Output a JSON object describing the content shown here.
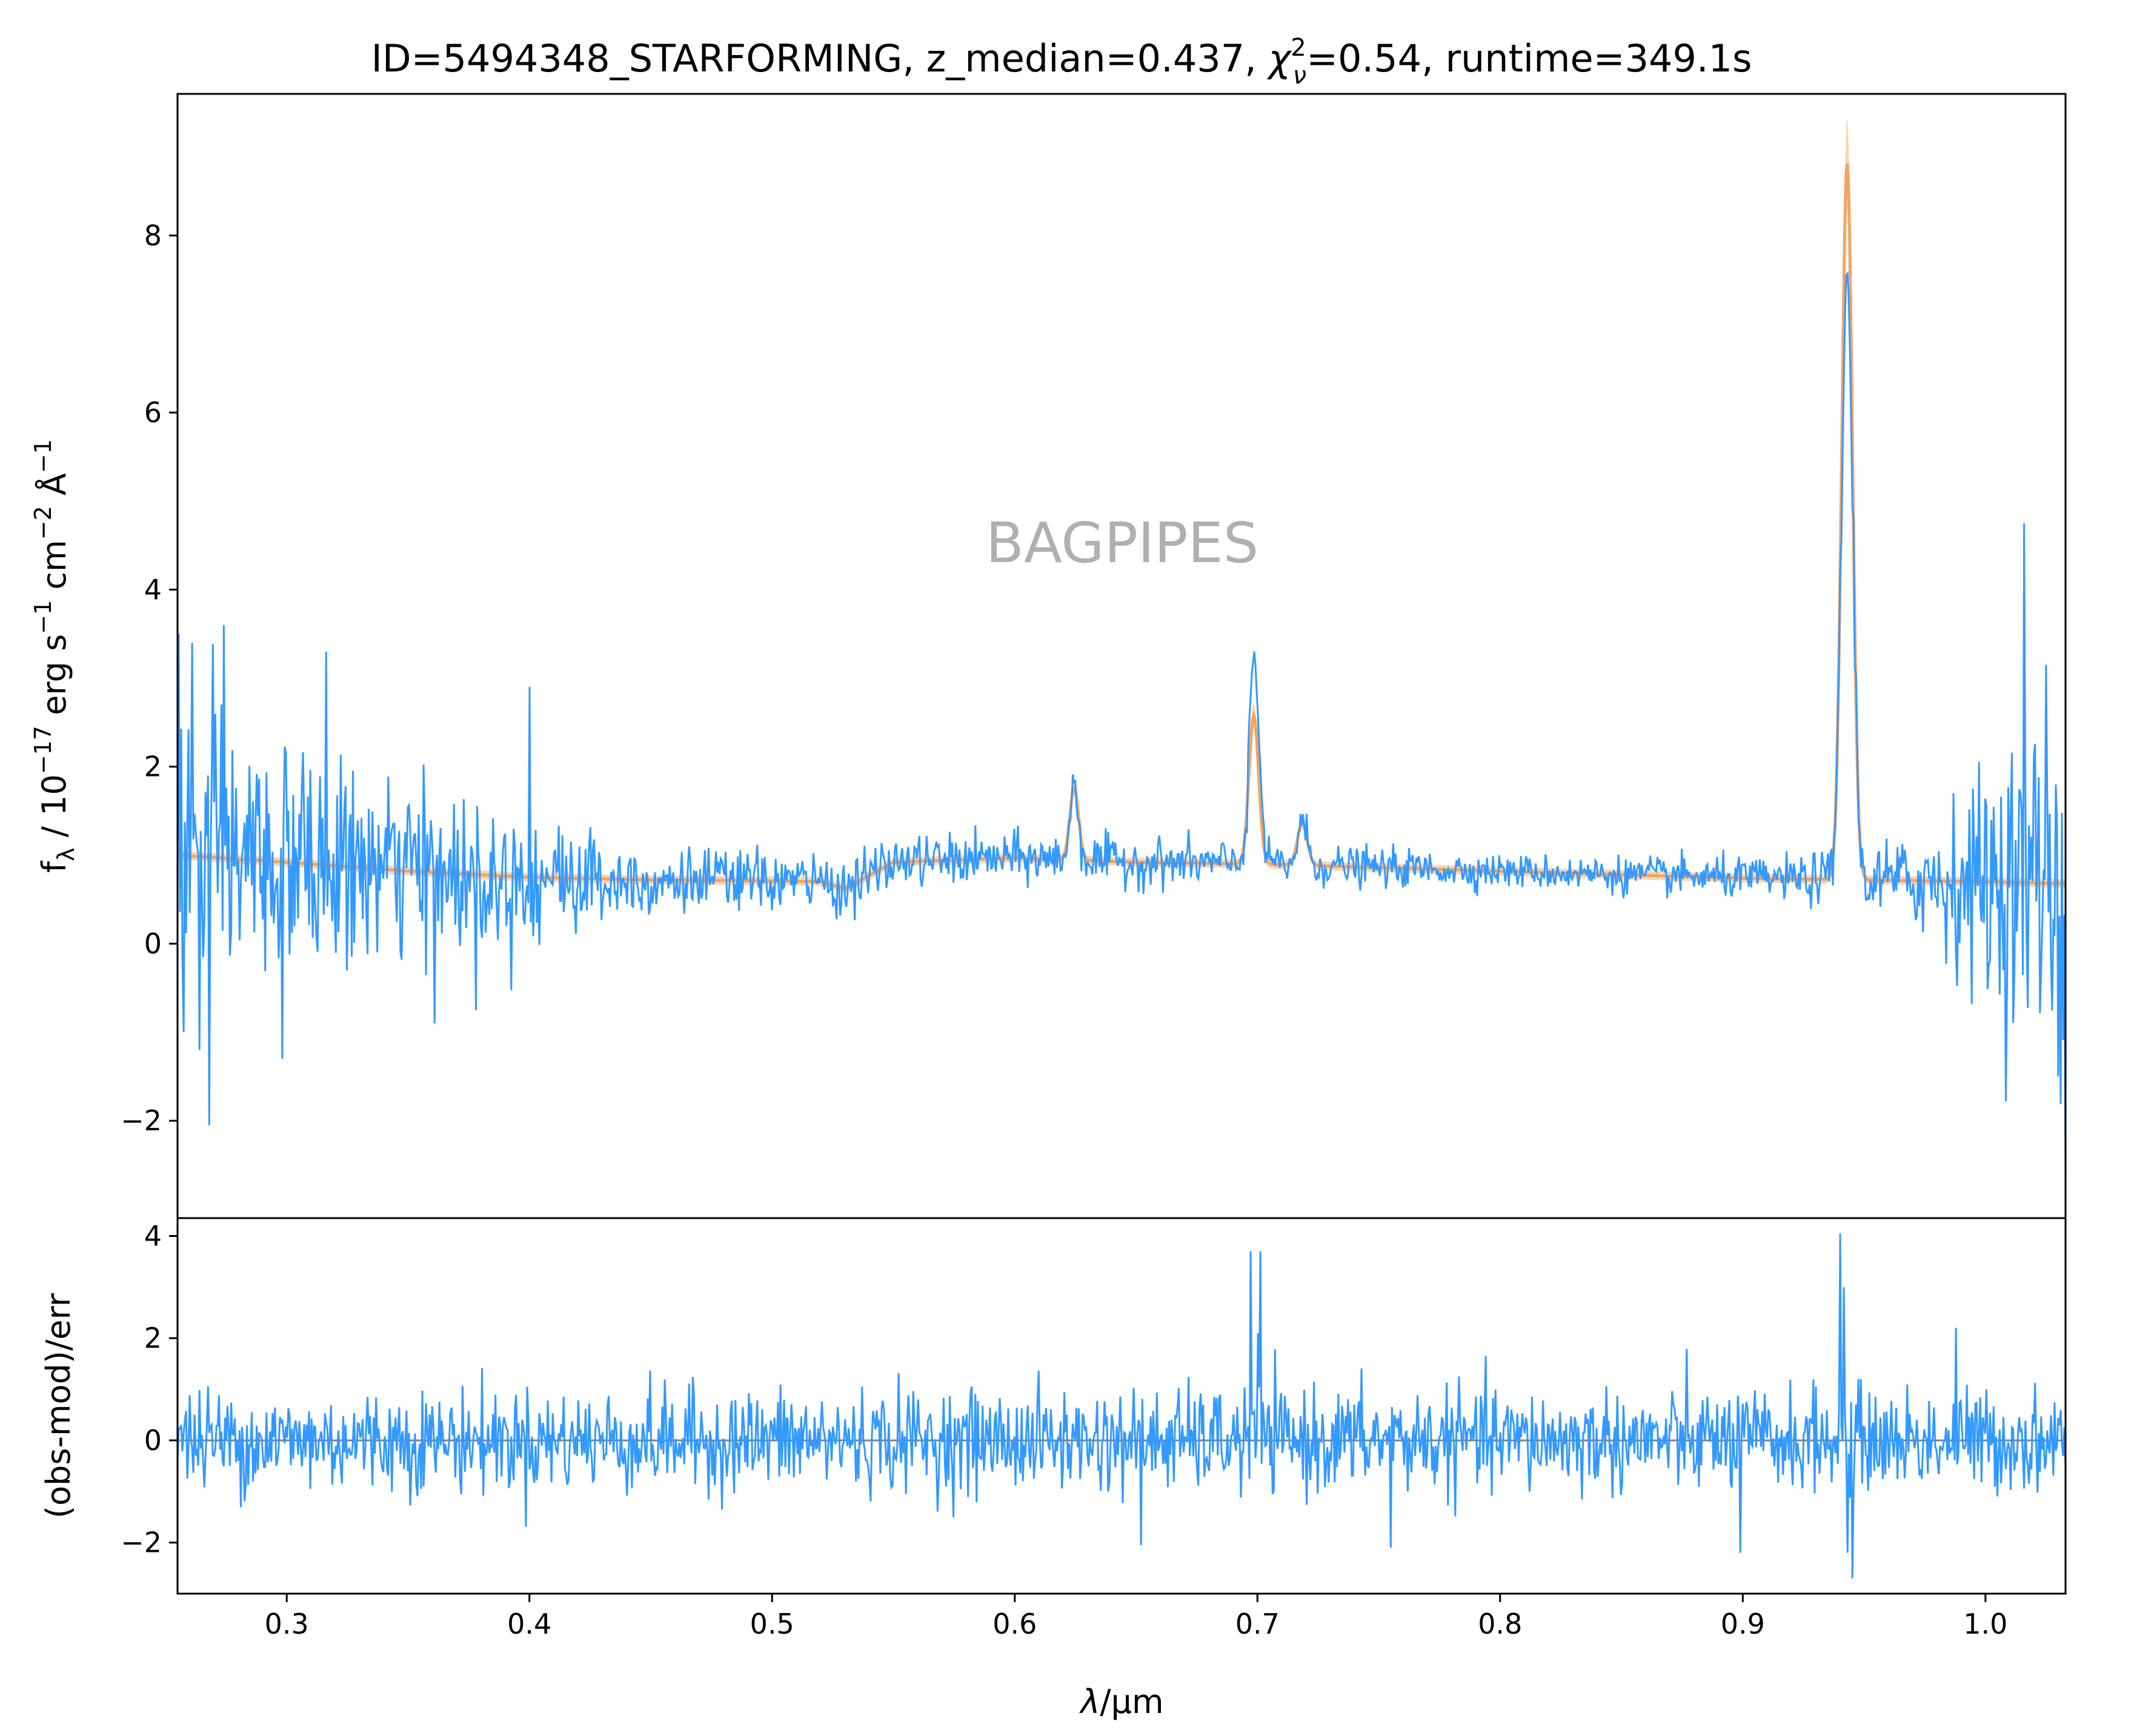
{
  "chart_data": [
    {
      "type": "line",
      "panel": "spectrum",
      "title": "ID=5494348_STARFORMING, z_median=0.437, χ²ν=0.54, runtime=349.1s",
      "title_parts": {
        "prefix": "ID=5494348_STARFORMING, z_median=0.437, ",
        "chi_symbol": "χ",
        "chi_superscript": "2",
        "chi_subscript": "ν",
        "suffix": "=0.54, runtime=349.1s"
      },
      "ylabel": "f_λ / 10⁻¹⁷ erg s⁻¹ cm⁻² Å⁻¹",
      "ylabel_parts": {
        "f": "f",
        "lambda_sub": "λ",
        "unit_prefix": " / 10",
        "exp1": "−17",
        "erg_s": " erg s",
        "exp2": "−1",
        "cm": " cm",
        "exp3": "−2",
        "ang": " Å",
        "exp4": "−1"
      },
      "annotation": "BAGPIPES",
      "xlim": [
        0.255,
        1.033
      ],
      "ylim": [
        -3.1,
        9.6
      ],
      "yticks": [
        -2,
        0,
        2,
        4,
        6,
        8
      ],
      "ytick_labels": [
        "−2",
        "0",
        "2",
        "4",
        "6",
        "8"
      ],
      "grid": false,
      "colors": {
        "observed": "#3399ff",
        "model": "#f4a460",
        "model_band": "#f4a460"
      },
      "continuum_model": {
        "x": [
          0.255,
          0.3,
          0.35,
          0.4,
          0.45,
          0.5,
          0.52,
          0.53,
          0.55,
          0.6,
          0.65,
          0.7,
          0.75,
          0.8,
          0.85,
          0.9,
          0.95,
          1.0,
          1.033
        ],
        "y": [
          1.0,
          0.92,
          0.82,
          0.75,
          0.72,
          0.71,
          0.7,
          0.62,
          0.92,
          0.97,
          0.92,
          0.9,
          0.86,
          0.82,
          0.78,
          0.74,
          0.72,
          0.7,
          0.68
        ]
      },
      "emission_lines": [
        {
          "center": 0.6245,
          "peak": 0.82,
          "width": 0.0018
        },
        {
          "center": 0.6985,
          "peak": 1.68,
          "width": 0.002
        },
        {
          "center": 0.7185,
          "peak": 0.48,
          "width": 0.002
        },
        {
          "center": 0.943,
          "peak": 8.1,
          "width": 0.0022
        }
      ],
      "observed_noise_sigma": [
        {
          "x": 0.255,
          "sigma": 1.05
        },
        {
          "x": 0.3,
          "sigma": 0.75
        },
        {
          "x": 0.35,
          "sigma": 0.55
        },
        {
          "x": 0.4,
          "sigma": 0.45
        },
        {
          "x": 0.45,
          "sigma": 0.23
        },
        {
          "x": 0.55,
          "sigma": 0.17
        },
        {
          "x": 0.65,
          "sigma": 0.16
        },
        {
          "x": 0.8,
          "sigma": 0.11
        },
        {
          "x": 0.92,
          "sigma": 0.14
        },
        {
          "x": 0.97,
          "sigma": 0.3
        },
        {
          "x": 1.0,
          "sigma": 0.75
        },
        {
          "x": 1.033,
          "sigma": 1.25
        }
      ],
      "observed_extremes": [
        {
          "x": 0.2555,
          "y": 3.5
        },
        {
          "x": 0.2575,
          "y": -1.0
        },
        {
          "x": 0.261,
          "y": 3.4
        },
        {
          "x": 0.264,
          "y": -1.2
        },
        {
          "x": 0.268,
          "y": -2.05
        },
        {
          "x": 0.274,
          "y": 3.6
        },
        {
          "x": 0.298,
          "y": -1.3
        },
        {
          "x": 0.316,
          "y": 3.3
        },
        {
          "x": 0.361,
          "y": -0.9
        },
        {
          "x": 0.378,
          "y": -0.75
        },
        {
          "x": 0.4,
          "y": 2.9
        },
        {
          "x": 0.6985,
          "y": 3.3
        },
        {
          "x": 0.9425,
          "y": 7.55
        },
        {
          "x": 1.016,
          "y": 4.75
        },
        {
          "x": 1.025,
          "y": 3.15
        },
        {
          "x": 1.03,
          "y": -1.5
        },
        {
          "x": 1.033,
          "y": -2.6
        }
      ]
    },
    {
      "type": "line",
      "panel": "residuals",
      "ylabel": "(obs-mod)/err",
      "xlabel": "λ/μm",
      "xlabel_parts": {
        "lambda": "λ",
        "unit": "/μm"
      },
      "xlim": [
        0.255,
        1.033
      ],
      "ylim": [
        -3.0,
        4.35
      ],
      "yticks": [
        -2,
        0,
        2,
        4
      ],
      "ytick_labels": [
        "−2",
        "0",
        "2",
        "4"
      ],
      "xticks": [
        0.3,
        0.4,
        0.5,
        0.6,
        0.7,
        0.8,
        0.9,
        1.0
      ],
      "xtick_labels": [
        "0.3",
        "0.4",
        "0.5",
        "0.6",
        "0.7",
        "0.8",
        "0.9",
        "1.0"
      ],
      "zero_line": 0,
      "grid": false,
      "colors": {
        "residual": "#3399ff",
        "zero_line": "#808080"
      },
      "noise_sigma": 0.5,
      "residual_extremes": [
        {
          "x": 0.697,
          "y": 3.7
        },
        {
          "x": 0.7,
          "y": 2.1
        },
        {
          "x": 0.701,
          "y": 3.7
        },
        {
          "x": 0.94,
          "y": 4.05
        },
        {
          "x": 0.9415,
          "y": 3.0
        },
        {
          "x": 0.945,
          "y": -2.7
        },
        {
          "x": 0.943,
          "y": -2.2
        },
        {
          "x": 0.899,
          "y": -2.2
        },
        {
          "x": 0.755,
          "y": -2.1
        },
        {
          "x": 0.652,
          "y": -2.05
        },
        {
          "x": 0.988,
          "y": 2.2
        }
      ]
    }
  ]
}
